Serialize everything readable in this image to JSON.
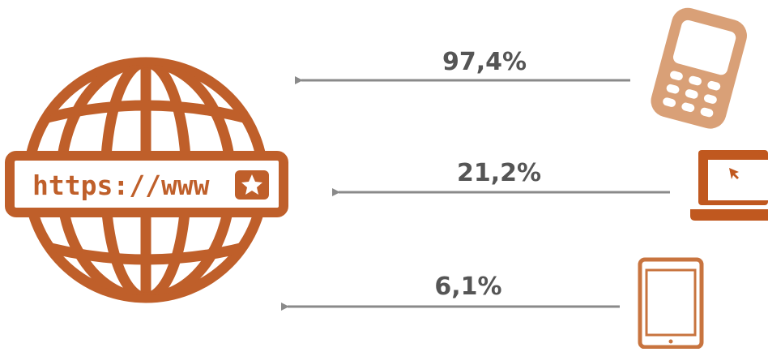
{
  "globe": {
    "label": "https://www"
  },
  "arrows": [
    {
      "label": "97,4%"
    },
    {
      "label": "21,2%"
    },
    {
      "label": "6,1%"
    }
  ]
}
